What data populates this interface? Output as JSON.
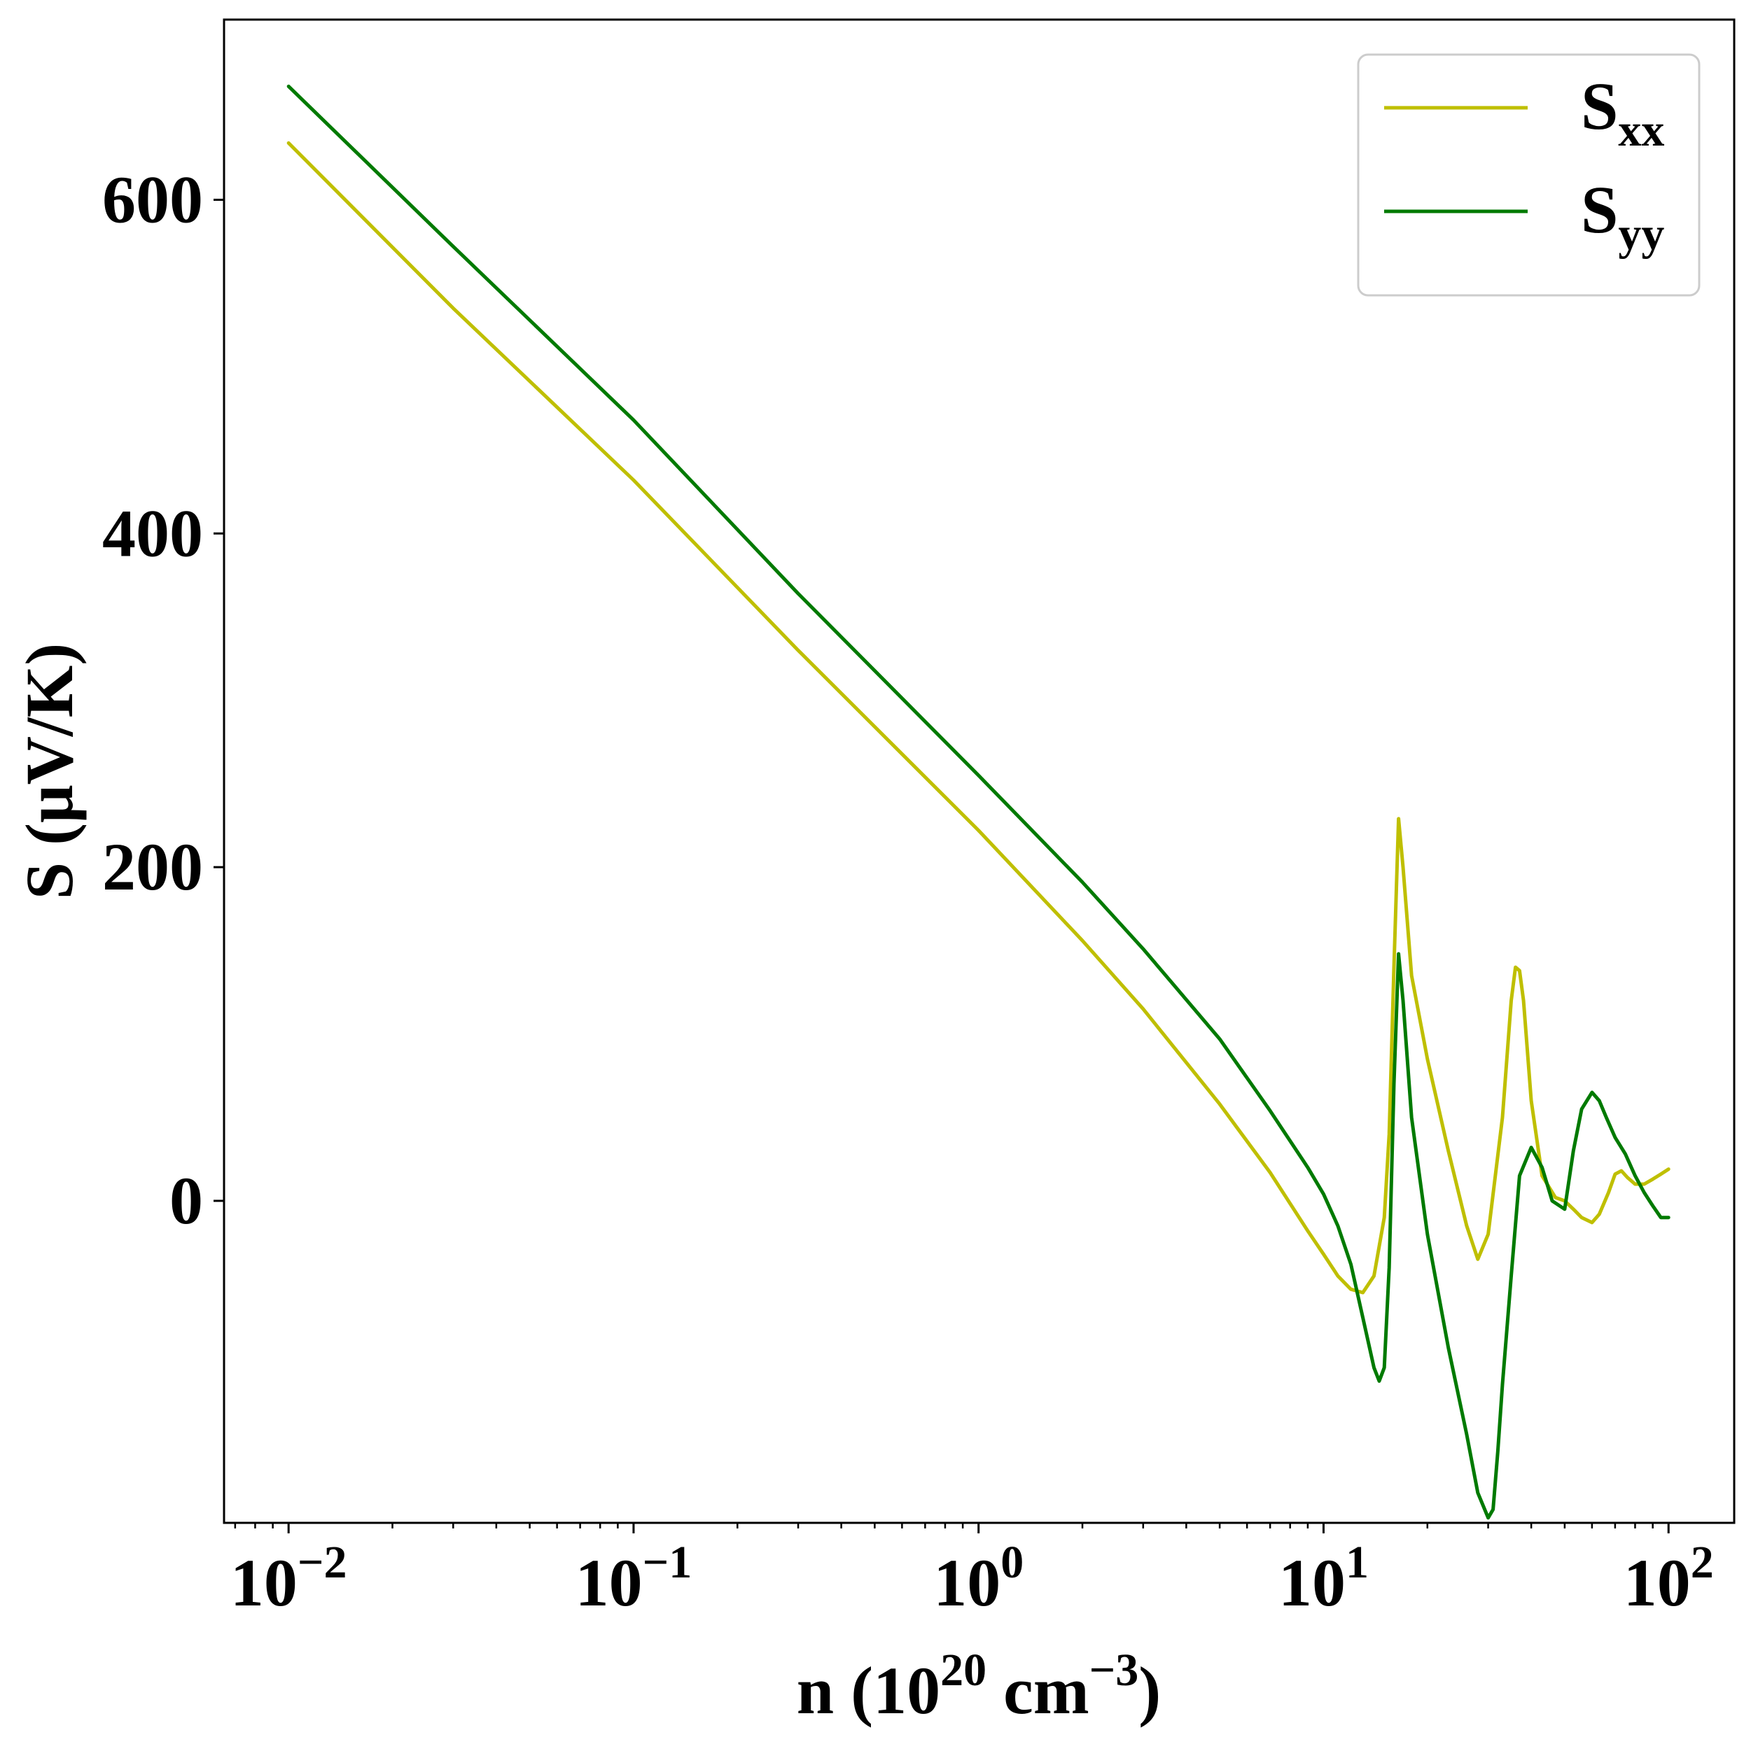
{
  "chart_data": {
    "type": "line",
    "xlabel": {
      "base": "n (10",
      "sup1": "20",
      "mid": " cm",
      "sup2": "−3",
      "end": ")"
    },
    "ylabel": "S (μV/K)",
    "xscale": "log",
    "xlim": [
      0.0065,
      155
    ],
    "ylim": [
      -193,
      708
    ],
    "grid": false,
    "legend_position": "top-right",
    "x_ticks": [
      {
        "value": 0.01,
        "base": "10",
        "exp": "−2"
      },
      {
        "value": 0.1,
        "base": "10",
        "exp": "−1"
      },
      {
        "value": 1,
        "base": "10",
        "exp": "0"
      },
      {
        "value": 10,
        "base": "10",
        "exp": "1"
      },
      {
        "value": 100,
        "base": "10",
        "exp": "2"
      }
    ],
    "y_ticks": [
      {
        "value": 0,
        "label": "0"
      },
      {
        "value": 200,
        "label": "200"
      },
      {
        "value": 400,
        "label": "400"
      },
      {
        "value": 600,
        "label": "600"
      }
    ],
    "series": [
      {
        "name": "S",
        "subscript": "xx",
        "color": "#bfbf00",
        "x": [
          0.01,
          0.03,
          0.1,
          0.3,
          1,
          2,
          3,
          5,
          7,
          9,
          10,
          11,
          12,
          13,
          14,
          15,
          15.5,
          16,
          16.5,
          17,
          18,
          20,
          23,
          26,
          28,
          30,
          33,
          35,
          36,
          37,
          38,
          40,
          43,
          47,
          50,
          53,
          56,
          60,
          63,
          67,
          70,
          73,
          76,
          80,
          85,
          90,
          95,
          100
        ],
        "y": [
          634,
          535,
          432,
          330,
          222,
          156,
          115,
          58,
          17,
          -18,
          -32,
          -45,
          -53,
          -55,
          -45,
          -10,
          40,
          140,
          229,
          200,
          135,
          85,
          30,
          -15,
          -35,
          -20,
          50,
          120,
          140,
          138,
          120,
          60,
          15,
          2,
          0,
          -5,
          -10,
          -13,
          -8,
          5,
          16,
          18,
          14,
          10,
          10,
          13,
          16,
          19
        ]
      },
      {
        "name": "S",
        "subscript": "yy",
        "color": "#007a00",
        "x": [
          0.01,
          0.03,
          0.1,
          0.3,
          1,
          2,
          3,
          5,
          7,
          9,
          10,
          11,
          12,
          13,
          14,
          14.5,
          15,
          15.5,
          16,
          16.5,
          17,
          18,
          20,
          23,
          26,
          28,
          30,
          31,
          32,
          33,
          35,
          37,
          40,
          43,
          46,
          50,
          53,
          56,
          60,
          63,
          66,
          70,
          75,
          80,
          85,
          90,
          95,
          100
        ],
        "y": [
          668,
          572,
          468,
          364,
          255,
          191,
          151,
          97,
          54,
          20,
          4,
          -15,
          -38,
          -70,
          -100,
          -108,
          -100,
          -40,
          70,
          148,
          120,
          50,
          -20,
          -88,
          -140,
          -175,
          -190,
          -185,
          -150,
          -110,
          -45,
          15,
          32,
          20,
          0,
          -5,
          30,
          55,
          65,
          60,
          50,
          38,
          28,
          15,
          5,
          -3,
          -10,
          -10
        ]
      }
    ]
  }
}
